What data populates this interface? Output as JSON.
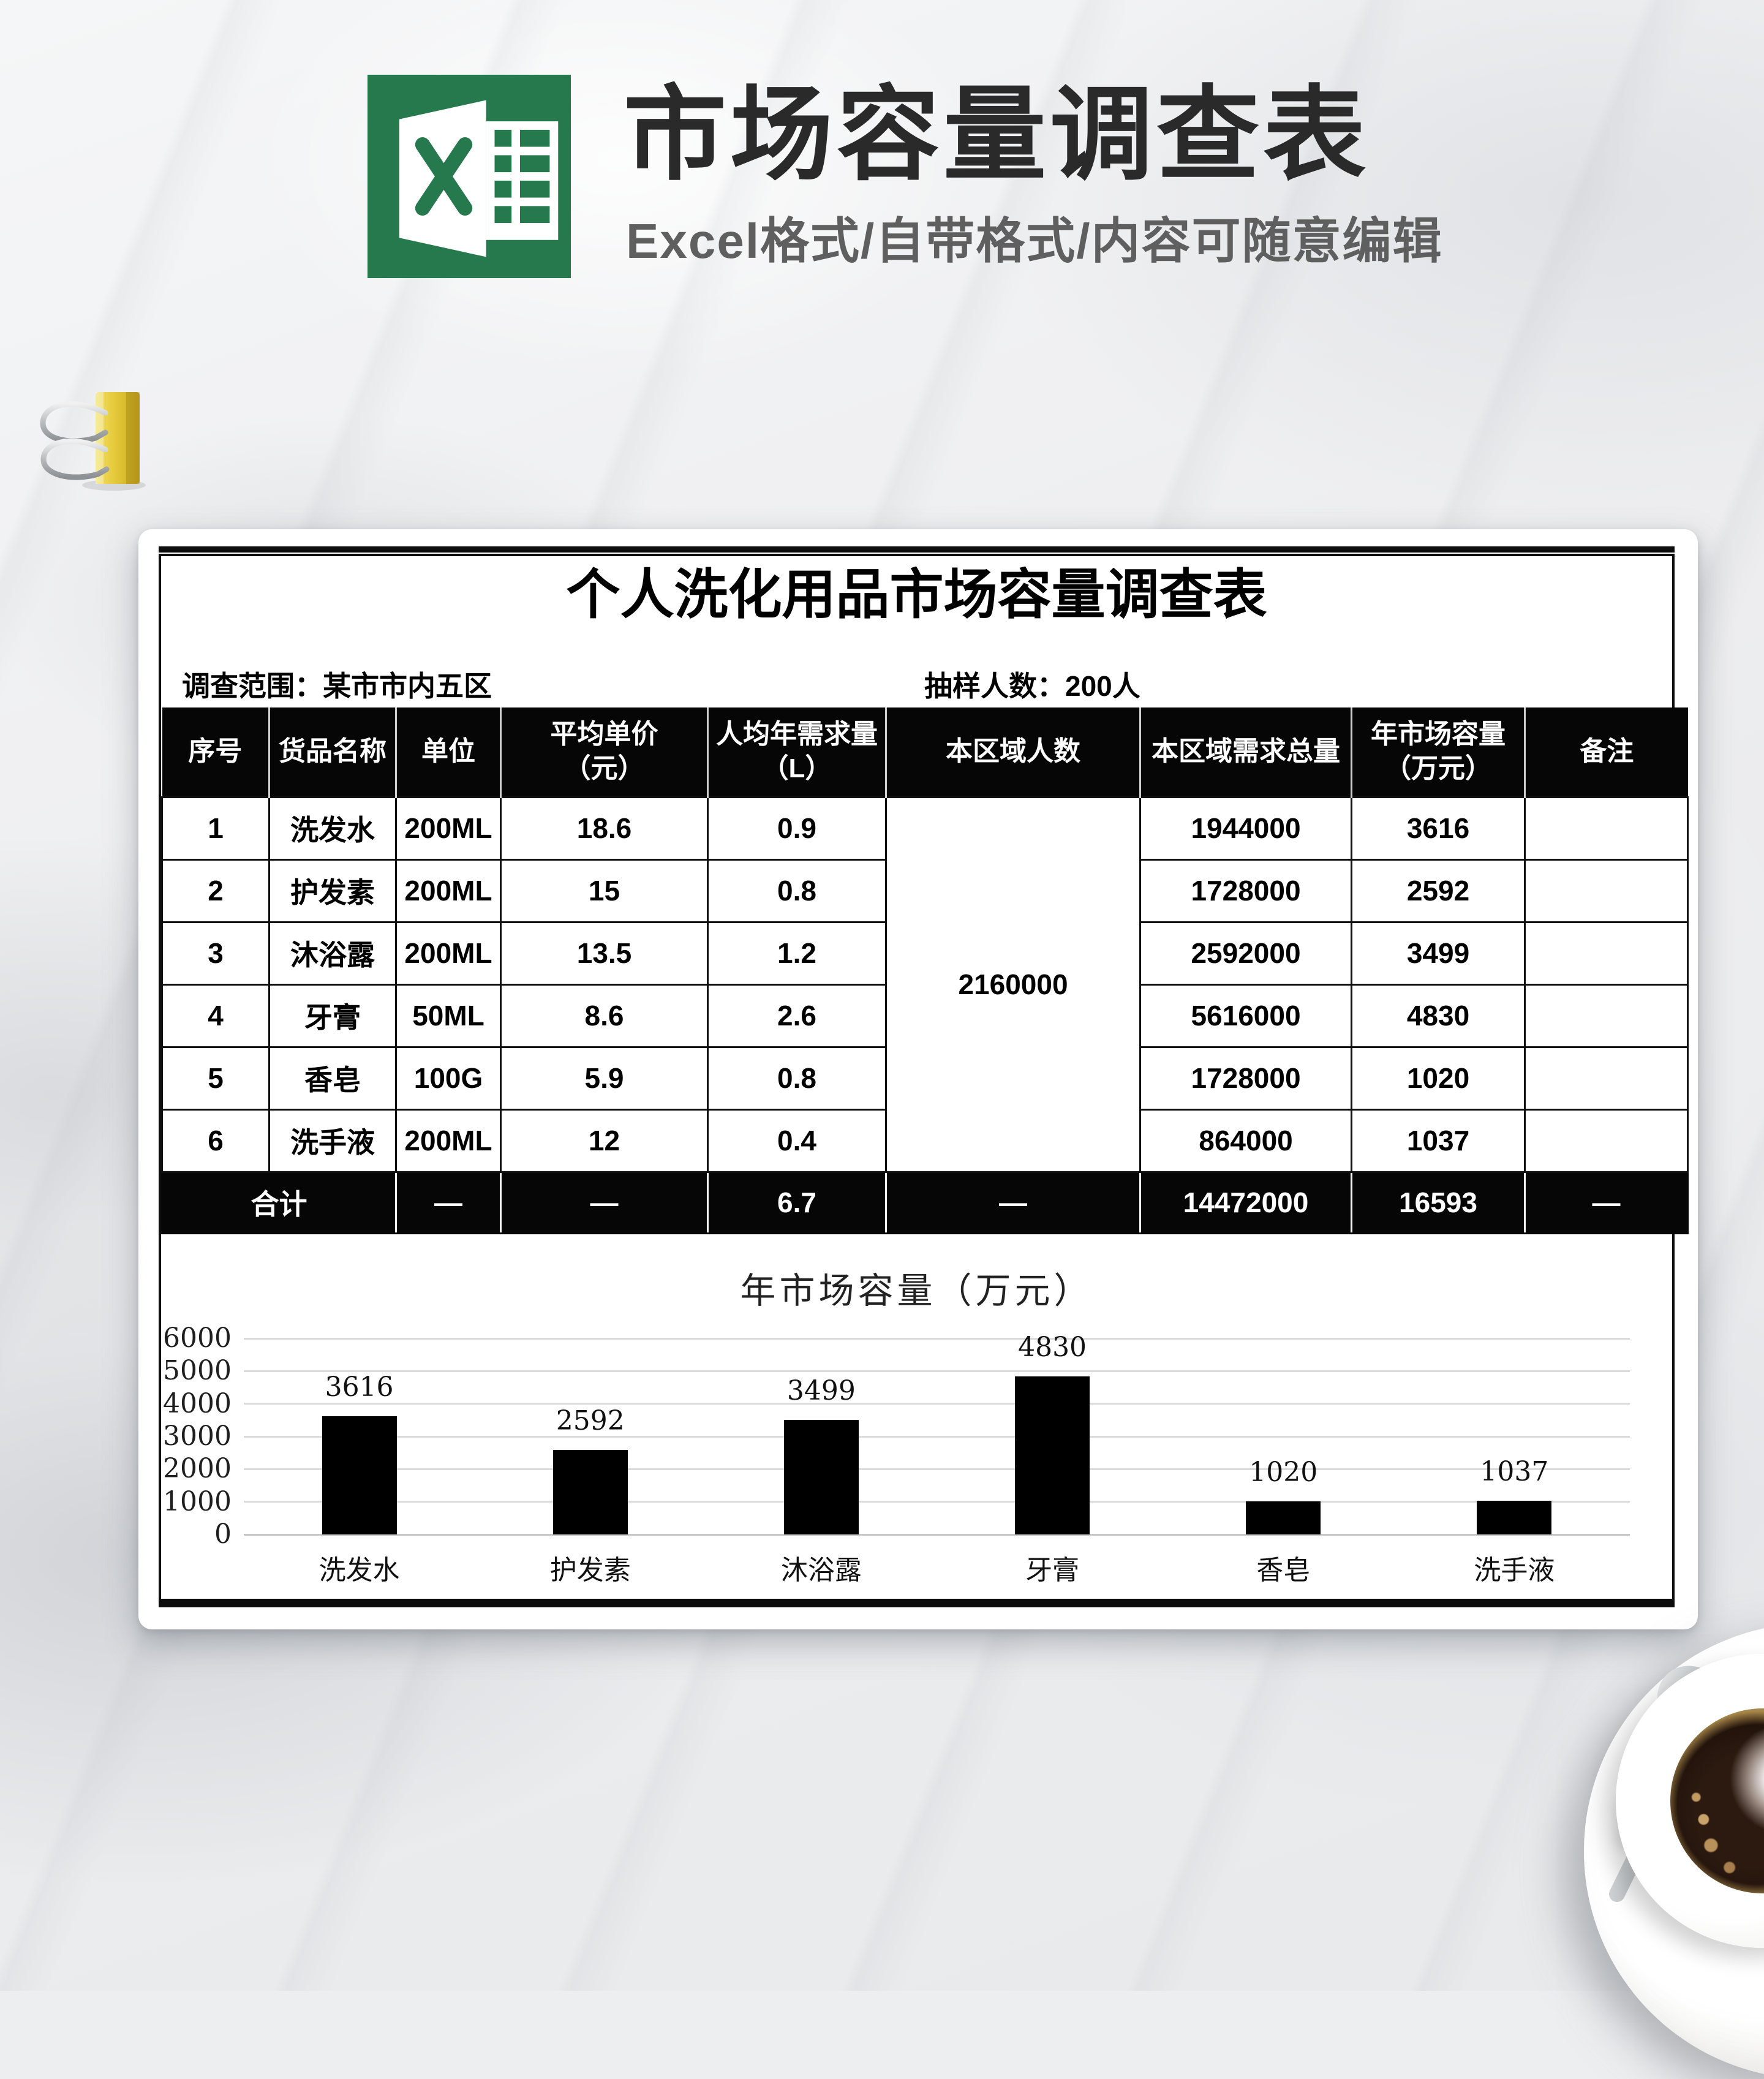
{
  "header": {
    "title": "市场容量调查表",
    "subtitle": "Excel格式/自带格式/内容可随意编辑"
  },
  "icons": {
    "logo": "excel-logo-icon",
    "clip": "binder-clip",
    "coffee": "coffee-cup-with-saucer-and-spoon"
  },
  "theme": {
    "excel_green": "#217346",
    "table_header_bg": "#060606",
    "bar_color": "#000000",
    "subtitle_gray": "#5f5f5f",
    "clip_yellow": "#e8c93e"
  },
  "sheet": {
    "title": "个人洗化用品市场容量调查表",
    "scope": "调查范围：某市市内五区",
    "sample": "抽样人数：200人",
    "table": {
      "col_headers": [
        {
          "main": "序号"
        },
        {
          "main": "货品名称"
        },
        {
          "main": "单位"
        },
        {
          "main": "平均单价",
          "sub": "（元）"
        },
        {
          "main": "人均年需求量",
          "sub": "（L）"
        },
        {
          "main": "本区域人数"
        },
        {
          "main": "本区域需求总量"
        },
        {
          "main": "年市场容量",
          "sub": "（万元）"
        },
        {
          "main": "备注"
        }
      ],
      "region_population": "2160000",
      "rows": [
        {
          "no": "1",
          "name": "洗发水",
          "unit": "200ML",
          "price": "18.6",
          "demand": "0.9",
          "total": "1944000",
          "capacity": "3616",
          "note": ""
        },
        {
          "no": "2",
          "name": "护发素",
          "unit": "200ML",
          "price": "15",
          "demand": "0.8",
          "total": "1728000",
          "capacity": "2592",
          "note": ""
        },
        {
          "no": "3",
          "name": "沐浴露",
          "unit": "200ML",
          "price": "13.5",
          "demand": "1.2",
          "total": "2592000",
          "capacity": "3499",
          "note": ""
        },
        {
          "no": "4",
          "name": "牙膏",
          "unit": "50ML",
          "price": "8.6",
          "demand": "2.6",
          "total": "5616000",
          "capacity": "4830",
          "note": ""
        },
        {
          "no": "5",
          "name": "香皂",
          "unit": "100G",
          "price": "5.9",
          "demand": "0.8",
          "total": "1728000",
          "capacity": "1020",
          "note": ""
        },
        {
          "no": "6",
          "name": "洗手液",
          "unit": "200ML",
          "price": "12",
          "demand": "0.4",
          "total": "864000",
          "capacity": "1037",
          "note": ""
        }
      ],
      "total_row": {
        "label": "合计",
        "unit": "—",
        "price": "—",
        "demand": "6.7",
        "population": "—",
        "total": "14472000",
        "capacity": "16593",
        "note": "—"
      }
    }
  },
  "chart_data": {
    "type": "bar",
    "title": "年市场容量（万元）",
    "categories": [
      "洗发水",
      "护发素",
      "沐浴露",
      "牙膏",
      "香皂",
      "洗手液"
    ],
    "values": [
      3616,
      2592,
      3499,
      4830,
      1020,
      1037
    ],
    "xlabel": "",
    "ylabel": "",
    "ylim": [
      0,
      6000
    ],
    "ytick_step": 1000,
    "grid": true,
    "legend": false,
    "data_labels": true,
    "bar_color": "#000000"
  }
}
